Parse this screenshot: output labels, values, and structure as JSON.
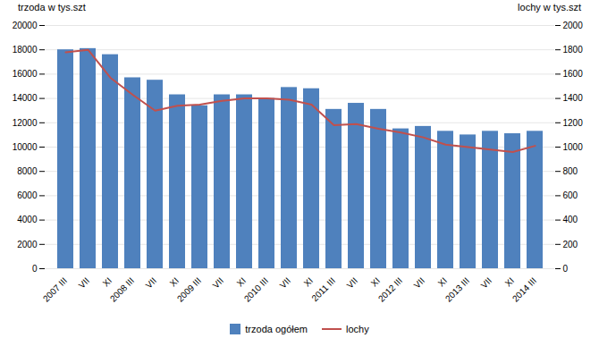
{
  "chart_data": {
    "type": "bar",
    "categories": [
      "2007 III",
      "VII",
      "XI",
      "2008 III",
      "VII",
      "XI",
      "2009 III",
      "VII",
      "XI",
      "2010 III",
      "VII",
      "XI",
      "2011 III",
      "VII",
      "XI",
      "2012 III",
      "VII",
      "XI",
      "2013 III",
      "VII",
      "XI",
      "2014 III"
    ],
    "series": [
      {
        "name": "trzoda ogółem",
        "type": "bar",
        "color": "#4f81bd",
        "values": [
          18000,
          18100,
          17600,
          15700,
          15500,
          14300,
          13400,
          14300,
          14300,
          14000,
          14900,
          14800,
          13100,
          13600,
          13100,
          11500,
          11700,
          11300,
          11000,
          11300,
          11100,
          11300
        ]
      },
      {
        "name": "lochy",
        "type": "line",
        "axis": "y2",
        "color": "#c0504d",
        "values": [
          1780,
          1800,
          1570,
          1430,
          1300,
          1340,
          1350,
          1380,
          1400,
          1400,
          1390,
          1350,
          1180,
          1190,
          1150,
          1120,
          1080,
          1020,
          1000,
          980,
          960,
          1010
        ]
      }
    ],
    "ylabel": "trzoda w tys.szt",
    "y2label": "lochy w tys.szt",
    "ylim": [
      0,
      20000
    ],
    "yticks": [
      0,
      2000,
      4000,
      6000,
      8000,
      10000,
      12000,
      14000,
      16000,
      18000,
      20000
    ],
    "y2lim": [
      0,
      2000
    ],
    "y2ticks": [
      0,
      200,
      400,
      600,
      800,
      1000,
      1200,
      1400,
      1600,
      1800,
      2000
    ],
    "grid": true,
    "legend": "bottom"
  }
}
